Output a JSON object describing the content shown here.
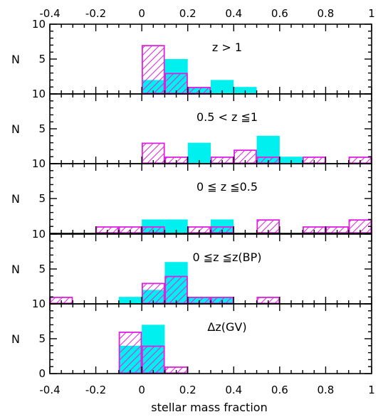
{
  "chart_data": {
    "type": "bar",
    "x_range": [
      -0.4,
      1.0
    ],
    "xticks": [
      -0.4,
      -0.2,
      0,
      0.2,
      0.4,
      0.6,
      0.8,
      1
    ],
    "xtick_labels": [
      "-0.4",
      "-0.2",
      "0",
      "0.2",
      "0.4",
      "0.6",
      "0.8",
      "1"
    ],
    "xlabel": "stellar mass fraction",
    "bin_width": 0.1,
    "colors": {
      "filled": "#00f0f0",
      "hatched": "#e020e0"
    },
    "panels": [
      {
        "label": "z > 1",
        "ylabel": "N",
        "ylim": [
          0,
          10
        ],
        "yticks": [
          5,
          10
        ],
        "ytick_labels": [
          "5",
          "10"
        ],
        "series": [
          {
            "style": "filled",
            "bin_left": [
              0.0,
              0.1,
              0.2,
              0.3,
              0.4
            ],
            "values": [
              2,
              5,
              1,
              2,
              1
            ]
          },
          {
            "style": "hatched",
            "bin_left": [
              0.0,
              0.1,
              0.2
            ],
            "values": [
              7,
              3,
              1
            ]
          }
        ]
      },
      {
        "label": "0.5 < z ≦1",
        "ylabel": "N",
        "ylim": [
          0,
          10
        ],
        "yticks": [
          5,
          10
        ],
        "ytick_labels": [
          "5",
          "10"
        ],
        "series": [
          {
            "style": "filled",
            "bin_left": [
              0.2,
              0.5,
              0.6
            ],
            "values": [
              3,
              4,
              1
            ]
          },
          {
            "style": "hatched",
            "bin_left": [
              0.0,
              0.1,
              0.3,
              0.4,
              0.5,
              0.7,
              0.9
            ],
            "values": [
              3,
              1,
              1,
              2,
              1,
              1,
              1
            ]
          }
        ]
      },
      {
        "label": "0 ≦ z ≦0.5",
        "ylabel": "N",
        "ylim": [
          0,
          10
        ],
        "yticks": [
          5,
          10
        ],
        "ytick_labels": [
          "5",
          "10"
        ],
        "series": [
          {
            "style": "filled",
            "bin_left": [
              0.0,
              0.1,
              0.3
            ],
            "values": [
              2,
              2,
              2
            ]
          },
          {
            "style": "hatched",
            "bin_left": [
              -0.2,
              -0.1,
              0.0,
              0.2,
              0.3,
              0.5,
              0.7,
              0.8,
              0.9
            ],
            "values": [
              1,
              1,
              1,
              1,
              1,
              2,
              1,
              1,
              2
            ]
          }
        ]
      },
      {
        "label": "0 ≦z ≦z(BP)",
        "ylabel": "N",
        "ylim": [
          0,
          10
        ],
        "yticks": [
          5,
          10
        ],
        "ytick_labels": [
          "5",
          "10"
        ],
        "series": [
          {
            "style": "filled",
            "bin_left": [
              -0.1,
              0.0,
              0.1,
              0.2,
              0.3
            ],
            "values": [
              1,
              2,
              6,
              1,
              1
            ]
          },
          {
            "style": "hatched",
            "bin_left": [
              -0.4,
              0.0,
              0.1,
              0.2,
              0.3,
              0.5
            ],
            "values": [
              1,
              3,
              4,
              1,
              1,
              1
            ]
          }
        ]
      },
      {
        "label": "Δz(GV)",
        "ylabel": "N",
        "ylim": [
          0,
          10
        ],
        "yticks": [
          0,
          5,
          10
        ],
        "ytick_labels": [
          "0",
          "5",
          "10"
        ],
        "series": [
          {
            "style": "filled",
            "bin_left": [
              -0.1,
              0.0
            ],
            "values": [
              4,
              7
            ]
          },
          {
            "style": "hatched",
            "bin_left": [
              -0.1,
              0.0,
              0.1
            ],
            "values": [
              6,
              4,
              1
            ]
          }
        ]
      }
    ]
  }
}
